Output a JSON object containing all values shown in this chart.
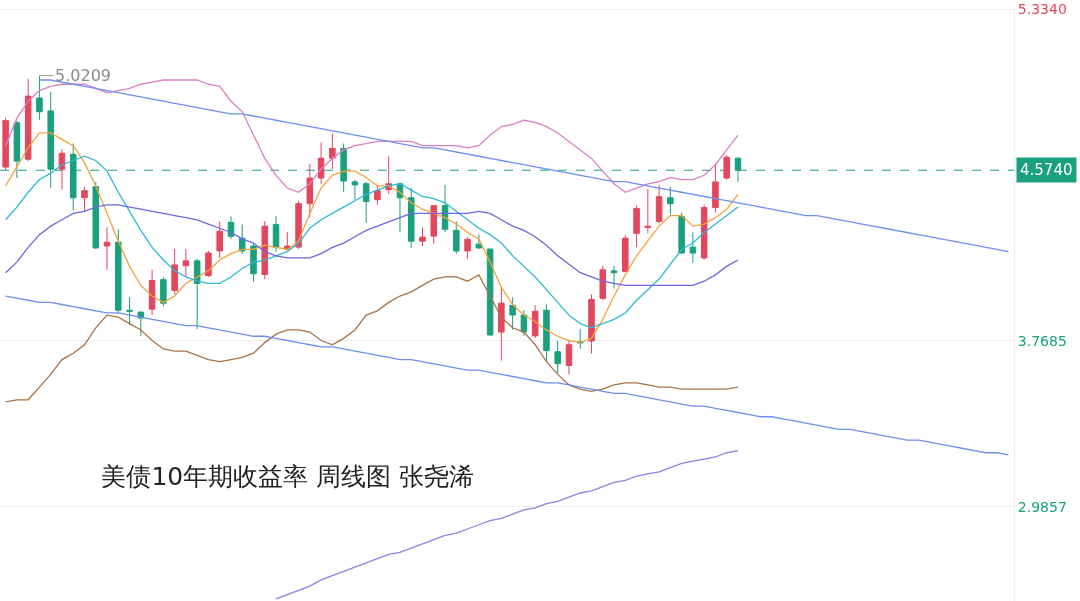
{
  "chart_data": {
    "type": "candlestick",
    "title": "美债10年期收益率 周线图 张尧浠",
    "categories": [
      null,
      null,
      null,
      null,
      null,
      null,
      null,
      null,
      null,
      null,
      null,
      null,
      null,
      null,
      null,
      null,
      null,
      null,
      null,
      null,
      null,
      null,
      null,
      null,
      null,
      null,
      null,
      null,
      null,
      null,
      null,
      null,
      null,
      null,
      null,
      null,
      null,
      null,
      null,
      null,
      null,
      null,
      null,
      null,
      null,
      null,
      null,
      null,
      null,
      null,
      null,
      null,
      null,
      null,
      null,
      null,
      null,
      null,
      null,
      null,
      null,
      null,
      null,
      null,
      null,
      null,
      null,
      null,
      null,
      null,
      null,
      null,
      null,
      null,
      null,
      null,
      null,
      null,
      null,
      null,
      null,
      null,
      null,
      null,
      null,
      null,
      null,
      null,
      null,
      null
    ],
    "ohlc": [
      [
        4.589,
        4.822,
        4.575,
        4.808
      ],
      [
        4.798,
        4.808,
        4.537,
        4.617
      ],
      [
        4.626,
        5.005,
        4.617,
        4.924
      ],
      [
        4.915,
        5.0209,
        4.812,
        4.85
      ],
      [
        4.854,
        4.943,
        4.491,
        4.579
      ],
      [
        4.579,
        4.673,
        4.482,
        4.654
      ],
      [
        4.649,
        4.7,
        4.384,
        4.444
      ],
      [
        4.444,
        4.496,
        4.379,
        4.477
      ],
      [
        4.496,
        4.519,
        4.202,
        4.207
      ],
      [
        4.216,
        4.304,
        4.104,
        4.234
      ],
      [
        4.234,
        4.295,
        3.899,
        3.913
      ],
      [
        3.913,
        3.974,
        3.843,
        3.908
      ],
      [
        3.904,
        3.908,
        3.792,
        3.876
      ],
      [
        3.918,
        4.104,
        3.89,
        4.053
      ],
      [
        4.057,
        4.071,
        3.932,
        3.946
      ],
      [
        4.006,
        4.202,
        3.988,
        4.127
      ],
      [
        4.123,
        4.202,
        4.071,
        4.146
      ],
      [
        4.146,
        4.155,
        3.824,
        4.039
      ],
      [
        4.076,
        4.193,
        4.071,
        4.183
      ],
      [
        4.193,
        4.332,
        4.16,
        4.286
      ],
      [
        4.328,
        4.356,
        4.248,
        4.262
      ],
      [
        4.253,
        4.318,
        4.179,
        4.193
      ],
      [
        4.216,
        4.225,
        4.048,
        4.085
      ],
      [
        4.082,
        4.334,
        4.059,
        4.31
      ],
      [
        4.318,
        4.357,
        4.189,
        4.211
      ],
      [
        4.202,
        4.281,
        4.194,
        4.216
      ],
      [
        4.211,
        4.43,
        4.202,
        4.416
      ],
      [
        4.416,
        4.603,
        4.351,
        4.537
      ],
      [
        4.537,
        4.705,
        4.51,
        4.631
      ],
      [
        4.631,
        4.747,
        4.579,
        4.677
      ],
      [
        4.677,
        4.7,
        4.472,
        4.523
      ],
      [
        4.519,
        4.528,
        4.435,
        4.505
      ],
      [
        4.51,
        4.519,
        4.326,
        4.426
      ],
      [
        4.435,
        4.505,
        4.412,
        4.477
      ],
      [
        4.482,
        4.64,
        4.463,
        4.51
      ],
      [
        4.51,
        4.514,
        4.281,
        4.444
      ],
      [
        4.444,
        4.491,
        4.207,
        4.239
      ],
      [
        4.239,
        4.304,
        4.216,
        4.258
      ],
      [
        4.263,
        4.407,
        4.225,
        4.407
      ],
      [
        4.407,
        4.505,
        4.281,
        4.295
      ],
      [
        4.29,
        4.332,
        4.179,
        4.193
      ],
      [
        4.193,
        4.258,
        4.155,
        4.248
      ],
      [
        4.225,
        4.272,
        4.202,
        4.207
      ],
      [
        4.202,
        4.202,
        3.792,
        3.796
      ],
      [
        3.81,
        4.025,
        3.675,
        3.946
      ],
      [
        3.936,
        3.974,
        3.82,
        3.89
      ],
      [
        3.89,
        3.913,
        3.792,
        3.81
      ],
      [
        3.792,
        3.936,
        3.782,
        3.908
      ],
      [
        3.913,
        3.941,
        3.671,
        3.722
      ],
      [
        3.717,
        3.768,
        3.615,
        3.661
      ],
      [
        3.652,
        3.773,
        3.61,
        3.75
      ],
      [
        3.764,
        3.824,
        3.731,
        3.759
      ],
      [
        3.768,
        3.988,
        3.708,
        3.964
      ],
      [
        3.969,
        4.123,
        3.96,
        4.104
      ],
      [
        4.099,
        4.123,
        4.015,
        4.09
      ],
      [
        4.095,
        4.267,
        4.095,
        4.253
      ],
      [
        4.276,
        4.407,
        4.211,
        4.393
      ],
      [
        4.304,
        4.486,
        4.276,
        4.309
      ],
      [
        4.332,
        4.505,
        4.323,
        4.449
      ],
      [
        4.444,
        4.496,
        4.365,
        4.416
      ],
      [
        4.356,
        4.374,
        4.179,
        4.183
      ],
      [
        4.211,
        4.281,
        4.137,
        4.183
      ],
      [
        4.16,
        4.412,
        4.151,
        4.398
      ],
      [
        4.398,
        4.603,
        4.374,
        4.519
      ],
      [
        4.537,
        4.645,
        4.528,
        4.635
      ],
      [
        4.631,
        4.635,
        4.519,
        4.574
      ],
      null,
      null,
      null,
      null,
      null,
      null,
      null,
      null,
      null,
      null,
      null,
      null,
      null,
      null,
      null,
      null,
      null,
      null,
      null,
      null,
      null,
      null,
      null,
      null
    ],
    "colors": [
      "#e2475d",
      "#1aa07c",
      "#e2475d",
      "#1aa07c",
      "#1aa07c",
      "#e2475d",
      "#1aa07c",
      "#e2475d",
      "#1aa07c",
      "#e2475d",
      "#1aa07c",
      "#1aa07c",
      "#1aa07c",
      "#e2475d",
      "#1aa07c",
      "#e2475d",
      "#e2475d",
      "#1aa07c",
      "#e2475d",
      "#e2475d",
      "#1aa07c",
      "#1aa07c",
      "#1aa07c",
      "#e2475d",
      "#1aa07c",
      "#e2475d",
      "#e2475d",
      "#e2475d",
      "#e2475d",
      "#e2475d",
      "#1aa07c",
      "#1aa07c",
      "#1aa07c",
      "#e2475d",
      "#e2475d",
      "#1aa07c",
      "#1aa07c",
      "#e2475d",
      "#e2475d",
      "#1aa07c",
      "#1aa07c",
      "#e2475d",
      "#1aa07c",
      "#1aa07c",
      "#e2475d",
      "#1aa07c",
      "#1aa07c",
      "#e2475d",
      "#1aa07c",
      "#1aa07c",
      "#e2475d",
      "#1aa07c",
      "#e2475d",
      "#e2475d",
      "#1aa07c",
      "#e2475d",
      "#e2475d",
      "#e2475d",
      "#e2475d",
      "#1aa07c",
      "#1aa07c",
      "#1aa07c",
      "#e2475d",
      "#e2475d",
      "#e2475d",
      "#1aa07c",
      null,
      null,
      null,
      null,
      null,
      null,
      null,
      null,
      null,
      null,
      null,
      null,
      null,
      null,
      null,
      null,
      null,
      null,
      null,
      null,
      null,
      null,
      null,
      null
    ],
    "series": [
      {
        "type": "line",
        "color": "#f5a23b",
        "values": [
          4.5,
          4.59,
          4.68,
          4.75,
          4.75,
          4.72,
          4.69,
          4.61,
          4.5,
          4.37,
          4.24,
          4.12,
          4.03,
          3.98,
          3.95,
          3.98,
          4.04,
          4.07,
          4.1,
          4.15,
          4.18,
          4.2,
          4.2,
          4.22,
          4.21,
          4.2,
          4.24,
          4.37,
          4.49,
          4.55,
          4.57,
          4.57,
          4.54,
          4.5,
          4.5,
          4.47,
          4.42,
          4.39,
          4.37,
          4.35,
          4.32,
          4.28,
          4.25,
          4.14,
          4.02,
          3.94,
          3.89,
          3.86,
          3.82,
          3.79,
          3.77,
          3.76,
          3.78,
          3.87,
          3.98,
          4.08,
          4.17,
          4.24,
          4.31,
          4.36,
          4.36,
          4.31,
          4.32,
          4.35,
          4.39,
          4.46,
          null,
          null,
          null,
          null,
          null,
          null,
          null,
          null,
          null,
          null,
          null,
          null,
          null,
          null,
          null,
          null,
          null,
          null,
          null,
          null,
          null,
          null,
          null,
          null
        ]
      },
      {
        "type": "line",
        "color": "#2fb9d6",
        "values": [
          4.34,
          4.4,
          4.47,
          4.53,
          4.56,
          4.6,
          4.62,
          4.64,
          4.62,
          4.57,
          4.47,
          4.38,
          4.29,
          4.21,
          4.15,
          4.1,
          4.07,
          4.05,
          4.04,
          4.04,
          4.07,
          4.11,
          4.14,
          4.15,
          4.17,
          4.19,
          4.23,
          4.3,
          4.34,
          4.37,
          4.4,
          4.43,
          4.46,
          4.48,
          4.5,
          4.51,
          4.48,
          4.45,
          4.44,
          4.42,
          4.38,
          4.34,
          4.3,
          4.27,
          4.23,
          4.17,
          4.12,
          4.07,
          4.01,
          3.95,
          3.89,
          3.85,
          3.83,
          3.85,
          3.87,
          3.9,
          3.96,
          4.01,
          4.06,
          4.13,
          4.2,
          4.23,
          4.28,
          4.32,
          4.36,
          4.4,
          null,
          null,
          null,
          null,
          null,
          null,
          null,
          null,
          null,
          null,
          null,
          null,
          null,
          null,
          null,
          null,
          null,
          null,
          null,
          null,
          null,
          null,
          null,
          null
        ]
      },
      {
        "type": "line",
        "color": "#6b68e0",
        "values": [
          4.09,
          4.14,
          4.21,
          4.27,
          4.31,
          4.34,
          4.37,
          4.38,
          4.4,
          4.41,
          4.41,
          4.4,
          4.39,
          4.38,
          4.37,
          4.36,
          4.35,
          4.34,
          4.32,
          4.3,
          4.28,
          4.25,
          4.23,
          4.19,
          4.17,
          4.16,
          4.16,
          4.16,
          4.18,
          4.21,
          4.23,
          4.26,
          4.29,
          4.31,
          4.33,
          4.35,
          4.37,
          4.37,
          4.37,
          4.37,
          4.37,
          4.37,
          4.38,
          4.37,
          4.34,
          4.31,
          4.29,
          4.26,
          4.22,
          4.17,
          4.13,
          4.09,
          4.07,
          4.05,
          4.04,
          4.03,
          4.03,
          4.03,
          4.03,
          4.03,
          4.03,
          4.03,
          4.05,
          4.08,
          4.12,
          4.15,
          null,
          null,
          null,
          null,
          null,
          null,
          null,
          null,
          null,
          null,
          null,
          null,
          null,
          null,
          null,
          null,
          null,
          null,
          null,
          null,
          null,
          null,
          null,
          null
        ]
      },
      {
        "type": "line",
        "color": "#dc7fc4",
        "values": [
          4.69,
          4.82,
          4.9,
          4.95,
          4.97,
          4.98,
          4.98,
          4.98,
          4.96,
          4.94,
          4.95,
          4.96,
          4.98,
          4.99,
          5.0,
          5.0,
          5.0,
          5.0,
          4.98,
          4.97,
          4.9,
          4.85,
          4.74,
          4.63,
          4.55,
          4.49,
          4.47,
          4.51,
          4.58,
          4.63,
          4.67,
          4.69,
          4.7,
          4.71,
          4.71,
          4.71,
          4.71,
          4.69,
          4.69,
          4.69,
          4.69,
          4.68,
          4.69,
          4.74,
          4.78,
          4.79,
          4.81,
          4.8,
          4.78,
          4.75,
          4.71,
          4.67,
          4.63,
          4.57,
          4.51,
          4.47,
          4.49,
          4.51,
          4.52,
          4.54,
          4.53,
          4.53,
          4.55,
          4.6,
          4.67,
          4.74,
          null,
          null,
          null,
          null,
          null,
          null,
          null,
          null,
          null,
          null,
          null,
          null,
          null,
          null,
          null,
          null,
          null,
          null,
          null,
          null,
          null,
          null,
          null,
          null
        ]
      },
      {
        "type": "line",
        "color": "#a97248",
        "values": [
          3.48,
          3.49,
          3.49,
          3.55,
          3.61,
          3.68,
          3.71,
          3.75,
          3.83,
          3.89,
          3.88,
          3.85,
          3.82,
          3.77,
          3.73,
          3.72,
          3.72,
          3.7,
          3.68,
          3.67,
          3.68,
          3.69,
          3.71,
          3.76,
          3.8,
          3.82,
          3.82,
          3.81,
          3.77,
          3.75,
          3.78,
          3.82,
          3.89,
          3.91,
          3.95,
          3.98,
          4.0,
          4.03,
          4.06,
          4.07,
          4.07,
          4.05,
          4.08,
          3.98,
          3.88,
          3.83,
          3.81,
          3.75,
          3.67,
          3.61,
          3.56,
          3.54,
          3.53,
          3.54,
          3.56,
          3.57,
          3.57,
          3.56,
          3.55,
          3.55,
          3.54,
          3.54,
          3.54,
          3.54,
          3.54,
          3.55,
          null,
          null,
          null,
          null,
          null,
          null,
          null,
          null,
          null,
          null,
          null,
          null,
          null,
          null,
          null,
          null,
          null,
          null,
          null,
          null,
          null,
          null,
          null,
          null
        ]
      },
      {
        "type": "line",
        "color": "#8f80e8",
        "values": [
          null,
          null,
          null,
          null,
          null,
          null,
          null,
          null,
          null,
          null,
          null,
          null,
          null,
          null,
          null,
          null,
          null,
          null,
          null,
          null,
          null,
          null,
          null,
          null,
          2.55,
          2.57,
          2.59,
          2.61,
          2.64,
          2.66,
          2.68,
          2.7,
          2.72,
          2.74,
          2.76,
          2.77,
          2.79,
          2.81,
          2.83,
          2.85,
          2.86,
          2.88,
          2.9,
          2.92,
          2.93,
          2.95,
          2.97,
          2.98,
          3.0,
          3.01,
          3.03,
          3.05,
          3.06,
          3.08,
          3.1,
          3.11,
          3.13,
          3.14,
          3.15,
          3.17,
          3.19,
          3.2,
          3.21,
          3.22,
          3.24,
          3.25,
          null,
          null,
          null,
          null,
          null,
          null,
          null,
          null,
          null,
          null,
          null,
          null,
          null,
          null,
          null,
          null,
          null,
          null,
          null,
          null,
          null,
          null,
          null,
          null
        ]
      },
      {
        "type": "line",
        "color": "#6d8ff0",
        "values": [
          null,
          null,
          null,
          5.0,
          5.0,
          4.99,
          4.98,
          4.97,
          4.96,
          4.95,
          4.94,
          4.93,
          4.92,
          4.91,
          4.9,
          4.89,
          4.88,
          4.87,
          4.86,
          4.85,
          4.84,
          4.84,
          4.83,
          4.82,
          4.81,
          4.8,
          4.79,
          4.78,
          4.77,
          4.76,
          4.75,
          4.74,
          4.73,
          4.72,
          4.71,
          4.7,
          4.69,
          4.68,
          4.68,
          4.67,
          4.66,
          4.65,
          4.64,
          4.63,
          4.62,
          4.61,
          4.6,
          4.59,
          4.58,
          4.57,
          4.56,
          4.55,
          4.54,
          4.53,
          4.52,
          4.52,
          4.51,
          4.5,
          4.49,
          4.48,
          4.47,
          4.46,
          4.45,
          4.44,
          4.43,
          4.42,
          4.41,
          4.4,
          4.39,
          4.38,
          4.37,
          4.36,
          4.36,
          4.35,
          4.34,
          4.33,
          4.32,
          4.31,
          4.3,
          4.29,
          4.28,
          4.27,
          4.26,
          4.25,
          4.24,
          4.23,
          4.22,
          4.21,
          4.2,
          4.19
        ]
      },
      {
        "type": "line",
        "color": "#6d8ff0",
        "values": [
          3.98,
          3.97,
          3.96,
          3.95,
          3.95,
          3.94,
          3.93,
          3.92,
          3.91,
          3.9,
          3.9,
          3.89,
          3.88,
          3.87,
          3.86,
          3.85,
          3.84,
          3.84,
          3.83,
          3.82,
          3.81,
          3.8,
          3.79,
          3.79,
          3.78,
          3.77,
          3.76,
          3.75,
          3.74,
          3.74,
          3.73,
          3.72,
          3.71,
          3.7,
          3.69,
          3.68,
          3.68,
          3.67,
          3.66,
          3.65,
          3.64,
          3.63,
          3.63,
          3.62,
          3.61,
          3.6,
          3.59,
          3.58,
          3.57,
          3.57,
          3.56,
          3.55,
          3.54,
          3.53,
          3.52,
          3.52,
          3.51,
          3.5,
          3.49,
          3.48,
          3.47,
          3.46,
          3.46,
          3.45,
          3.44,
          3.43,
          3.42,
          3.41,
          3.41,
          3.4,
          3.39,
          3.38,
          3.37,
          3.36,
          3.35,
          3.35,
          3.34,
          3.33,
          3.32,
          3.31,
          3.3,
          3.3,
          3.29,
          3.28,
          3.27,
          3.26,
          3.25,
          3.24,
          3.24,
          3.23
        ]
      }
    ],
    "ylim": [
      2.54,
      5.34
    ],
    "yticks": [
      2.9857,
      3.7685,
      {
        "value": 5.334,
        "label": "5.3340"
      }
    ],
    "ref_lines": [
      {
        "axis": "y",
        "value": 4.574,
        "label": "4.5740",
        "color": "#1aa07c",
        "line_style": "dashed"
      }
    ],
    "annotations": [
      "5.0209"
    ],
    "grid": "y",
    "tick_labels": "y",
    "marker": "none",
    "line_style": "solid"
  }
}
